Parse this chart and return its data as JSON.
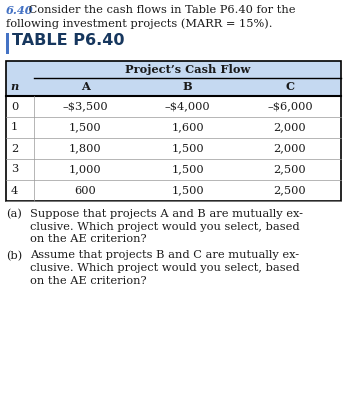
{
  "title_number": "6.40",
  "title_rest": " Consider the cash flows in Table P6.40 for the",
  "title_line2": "following investment projects (MARR = 15%).",
  "table_title": "TABLE P6.40",
  "col_group_header": "Project’s Cash Flow",
  "col_headers": [
    "n",
    "A",
    "B",
    "C"
  ],
  "rows": [
    [
      "0",
      "–$3,500",
      "–$4,000",
      "–$6,000"
    ],
    [
      "1",
      "1,500",
      "1,600",
      "2,000"
    ],
    [
      "2",
      "1,800",
      "1,500",
      "2,000"
    ],
    [
      "3",
      "1,000",
      "1,500",
      "2,500"
    ],
    [
      "4",
      "600",
      "1,500",
      "2,500"
    ]
  ],
  "qa_label": "(a)",
  "qa_line1": "Suppose that projects A and B are mutually ex-",
  "qa_line2": "clusive. Which project would you select, based",
  "qa_line3": "on the AE criterion?",
  "qb_label": "(b)",
  "qb_line1": "Assume that projects B and C are mutually ex-",
  "qb_line2": "clusive. Which project would you select, based",
  "qb_line3": "on the AE criterion?",
  "header_bg": "#c5d9f1",
  "row_bg_white": "#ffffff",
  "row_bg_blue": "#dce6f1",
  "table_border_color": "#000000",
  "inner_line_color": "#999999",
  "title_number_color": "#4472c4",
  "text_color": "#1a1a1a",
  "table_title_color": "#17375e",
  "left_bar_color": "#4472c4",
  "page_bg": "#ffffff"
}
